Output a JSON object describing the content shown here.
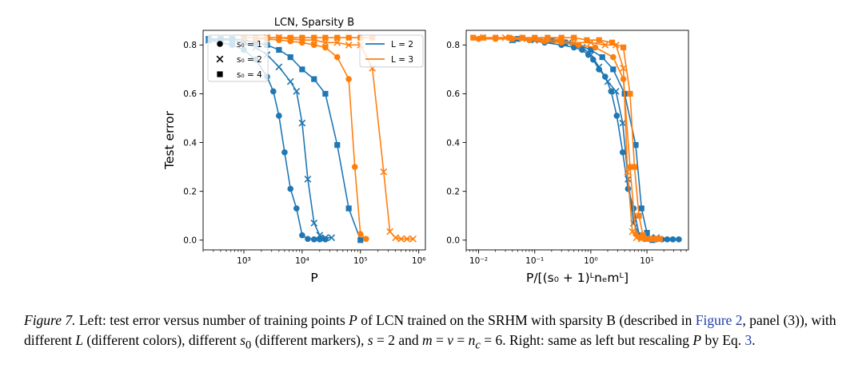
{
  "chart_data": [
    {
      "type": "line",
      "title": "LCN, Sparsity B",
      "xlabel": "P",
      "ylabel": "Test error",
      "xscale": "log",
      "xlim": [
        200,
        1300000
      ],
      "ylim": [
        -0.04,
        0.86
      ],
      "xticks": [
        1000,
        10000,
        100000,
        1000000
      ],
      "xtick_labels": [
        "10³",
        "10⁴",
        "10⁵",
        "10⁶"
      ],
      "yticks": [
        0.0,
        0.2,
        0.4,
        0.6,
        0.8
      ],
      "ytick_labels": [
        "0.0",
        "0.2",
        "0.4",
        "0.6",
        "0.8"
      ],
      "grid": false,
      "legend_markers": {
        "placement": "top-left",
        "entries": [
          {
            "label": "s₀ = 1",
            "marker": "circle"
          },
          {
            "label": "s₀ = 2",
            "marker": "x"
          },
          {
            "label": "s₀ = 4",
            "marker": "square"
          }
        ]
      },
      "legend_colors": {
        "placement": "top-center",
        "entries": [
          {
            "label": "L = 2",
            "color": "#1f77b4"
          },
          {
            "label": "L = 3",
            "color": "#ff7f0e"
          }
        ]
      },
      "series": [
        {
          "L": 2,
          "s0": 1,
          "marker": "circle",
          "color": "#1f77b4",
          "x": [
            250,
            400,
            630,
            1000,
            1600,
            2500,
            3200,
            4000,
            5000,
            6300,
            8000,
            10000,
            12500,
            16000,
            20000,
            25000
          ],
          "y": [
            0.82,
            0.81,
            0.8,
            0.78,
            0.74,
            0.67,
            0.61,
            0.51,
            0.36,
            0.21,
            0.13,
            0.02,
            0.005,
            0.003,
            0.003,
            0.003
          ]
        },
        {
          "L": 2,
          "s0": 2,
          "marker": "x",
          "color": "#1f77b4",
          "x": [
            250,
            400,
            630,
            1000,
            1600,
            2500,
            4000,
            6300,
            8000,
            10000,
            12500,
            16000,
            20000,
            25000,
            32000
          ],
          "y": [
            0.82,
            0.82,
            0.82,
            0.81,
            0.79,
            0.76,
            0.71,
            0.65,
            0.61,
            0.48,
            0.25,
            0.07,
            0.02,
            0.01,
            0.01
          ]
        },
        {
          "L": 2,
          "s0": 4,
          "marker": "square",
          "color": "#1f77b4",
          "x": [
            250,
            400,
            630,
            1000,
            1600,
            2500,
            4000,
            6300,
            10000,
            16000,
            25000,
            40000,
            63000,
            100000
          ],
          "y": [
            0.825,
            0.825,
            0.825,
            0.82,
            0.81,
            0.8,
            0.78,
            0.75,
            0.7,
            0.66,
            0.6,
            0.39,
            0.13,
            0.0
          ]
        },
        {
          "L": 3,
          "s0": 1,
          "marker": "circle",
          "color": "#ff7f0e",
          "x": [
            1600,
            2500,
            4000,
            6300,
            10000,
            16000,
            25000,
            40000,
            63000,
            80000,
            100000,
            125000
          ],
          "y": [
            0.825,
            0.825,
            0.82,
            0.815,
            0.81,
            0.8,
            0.79,
            0.75,
            0.66,
            0.3,
            0.025,
            0.005
          ]
        },
        {
          "L": 3,
          "s0": 2,
          "marker": "x",
          "color": "#ff7f0e",
          "x": [
            2500,
            4000,
            6300,
            10000,
            16000,
            25000,
            40000,
            63000,
            100000,
            160000,
            250000,
            320000,
            400000,
            500000,
            630000,
            800000
          ],
          "y": [
            0.83,
            0.83,
            0.825,
            0.82,
            0.82,
            0.81,
            0.81,
            0.8,
            0.8,
            0.705,
            0.28,
            0.035,
            0.01,
            0.005,
            0.005,
            0.005
          ]
        },
        {
          "L": 3,
          "s0": 4,
          "marker": "square",
          "color": "#ff7f0e",
          "x": [
            1000,
            1600,
            2500,
            4000,
            6300,
            10000,
            16000,
            25000,
            40000,
            63000,
            100000,
            160000
          ],
          "y": [
            0.83,
            0.83,
            0.83,
            0.83,
            0.83,
            0.83,
            0.83,
            0.83,
            0.83,
            0.83,
            0.83,
            0.83
          ]
        }
      ]
    },
    {
      "type": "line",
      "title": "",
      "xlabel": "P/[(s₀ + 1)ᴸnₑmᴸ]",
      "ylabel": "",
      "xscale": "log",
      "xlim": [
        0.006,
        55
      ],
      "ylim": [
        -0.04,
        0.86
      ],
      "xticks": [
        0.01,
        0.1,
        1,
        10
      ],
      "xtick_labels": [
        "10⁻²",
        "10⁻¹",
        "10⁰",
        "10¹"
      ],
      "yticks": [
        0.0,
        0.2,
        0.4,
        0.6,
        0.8
      ],
      "ytick_labels": [
        "0.0",
        "0.2",
        "0.4",
        "0.6",
        "0.8"
      ],
      "grid": false,
      "series": [
        {
          "L": 2,
          "s0": 1,
          "marker": "circle",
          "color": "#1f77b4",
          "x": [
            0.04,
            0.08,
            0.15,
            0.3,
            0.5,
            0.7,
            0.9,
            1.1,
            1.4,
            1.8,
            2.3,
            2.9,
            3.7,
            4.6,
            5.8,
            7.3,
            9.3,
            11.6,
            14.7,
            18.5,
            23,
            29,
            37
          ],
          "y": [
            0.82,
            0.82,
            0.81,
            0.8,
            0.79,
            0.78,
            0.76,
            0.74,
            0.7,
            0.67,
            0.61,
            0.51,
            0.36,
            0.21,
            0.13,
            0.02,
            0.005,
            0.003,
            0.003,
            0.003,
            0.003,
            0.003,
            0.003
          ]
        },
        {
          "L": 2,
          "s0": 2,
          "marker": "x",
          "color": "#1f77b4",
          "x": [
            0.04,
            0.1,
            0.2,
            0.4,
            0.7,
            1.0,
            1.4,
            2.0,
            2.8,
            3.7,
            4.6,
            5.8,
            7.3,
            9.3,
            11.6,
            14.7
          ],
          "y": [
            0.82,
            0.82,
            0.82,
            0.81,
            0.79,
            0.76,
            0.71,
            0.65,
            0.61,
            0.48,
            0.25,
            0.07,
            0.02,
            0.01,
            0.01,
            0.01
          ]
        },
        {
          "L": 2,
          "s0": 4,
          "marker": "square",
          "color": "#1f77b4",
          "x": [
            0.05,
            0.1,
            0.2,
            0.35,
            0.6,
            1.0,
            1.6,
            2.5,
            4.0,
            6.3,
            8.0,
            10.0,
            12.5
          ],
          "y": [
            0.825,
            0.825,
            0.82,
            0.81,
            0.8,
            0.78,
            0.75,
            0.7,
            0.6,
            0.39,
            0.13,
            0.03,
            0.0
          ]
        },
        {
          "L": 3,
          "s0": 1,
          "marker": "circle",
          "color": "#ff7f0e",
          "x": [
            0.01,
            0.02,
            0.04,
            0.08,
            0.15,
            0.3,
            0.6,
            1.2,
            2.5,
            3.8,
            5.0,
            6.3,
            7.6,
            9.0,
            11,
            14
          ],
          "y": [
            0.825,
            0.825,
            0.825,
            0.82,
            0.815,
            0.81,
            0.8,
            0.79,
            0.75,
            0.66,
            0.3,
            0.025,
            0.01,
            0.005,
            0.005,
            0.005
          ]
        },
        {
          "L": 3,
          "s0": 2,
          "marker": "x",
          "color": "#ff7f0e",
          "x": [
            0.012,
            0.03,
            0.06,
            0.12,
            0.25,
            0.5,
            1.0,
            1.8,
            2.8,
            3.8,
            4.5,
            5.5,
            6.5,
            8.0,
            10,
            12.5,
            16
          ],
          "y": [
            0.83,
            0.83,
            0.825,
            0.82,
            0.82,
            0.81,
            0.81,
            0.8,
            0.8,
            0.705,
            0.28,
            0.035,
            0.01,
            0.005,
            0.005,
            0.005,
            0.005
          ]
        },
        {
          "L": 3,
          "s0": 4,
          "marker": "square",
          "color": "#ff7f0e",
          "x": [
            0.008,
            0.012,
            0.02,
            0.035,
            0.06,
            0.1,
            0.17,
            0.3,
            0.5,
            0.85,
            1.4,
            2.4,
            3.8,
            5.0,
            6.0,
            7.2,
            8.5,
            10,
            12,
            14.5,
            17
          ],
          "y": [
            0.83,
            0.83,
            0.83,
            0.83,
            0.83,
            0.83,
            0.83,
            0.83,
            0.83,
            0.82,
            0.82,
            0.81,
            0.79,
            0.6,
            0.3,
            0.1,
            0.02,
            0.005,
            0.005,
            0.005,
            0.005
          ]
        }
      ]
    }
  ],
  "caption": {
    "label": "Figure 7.",
    "t1": " Left: test error versus number of training points ",
    "v1": "P",
    "t2": " of LCN trained on the SRHM with sparsity B (described in ",
    "link1": "Figure 2",
    "t3": ", panel (3)), with different ",
    "v2": "L",
    "t4": " (different colors), different ",
    "v3": "s",
    "v3sub": "0",
    "t5": " (different markers), ",
    "v4": "s",
    "t6": " = 2 and ",
    "v5": "m",
    "t7": " = ",
    "v6": "v",
    "t8": " = ",
    "v7": "n",
    "v7sub": "c",
    "t9": " = 6. Right: same as left but rescaling ",
    "v8": "P",
    "t10": " by Eq. ",
    "link2": "3",
    "t11": "."
  }
}
